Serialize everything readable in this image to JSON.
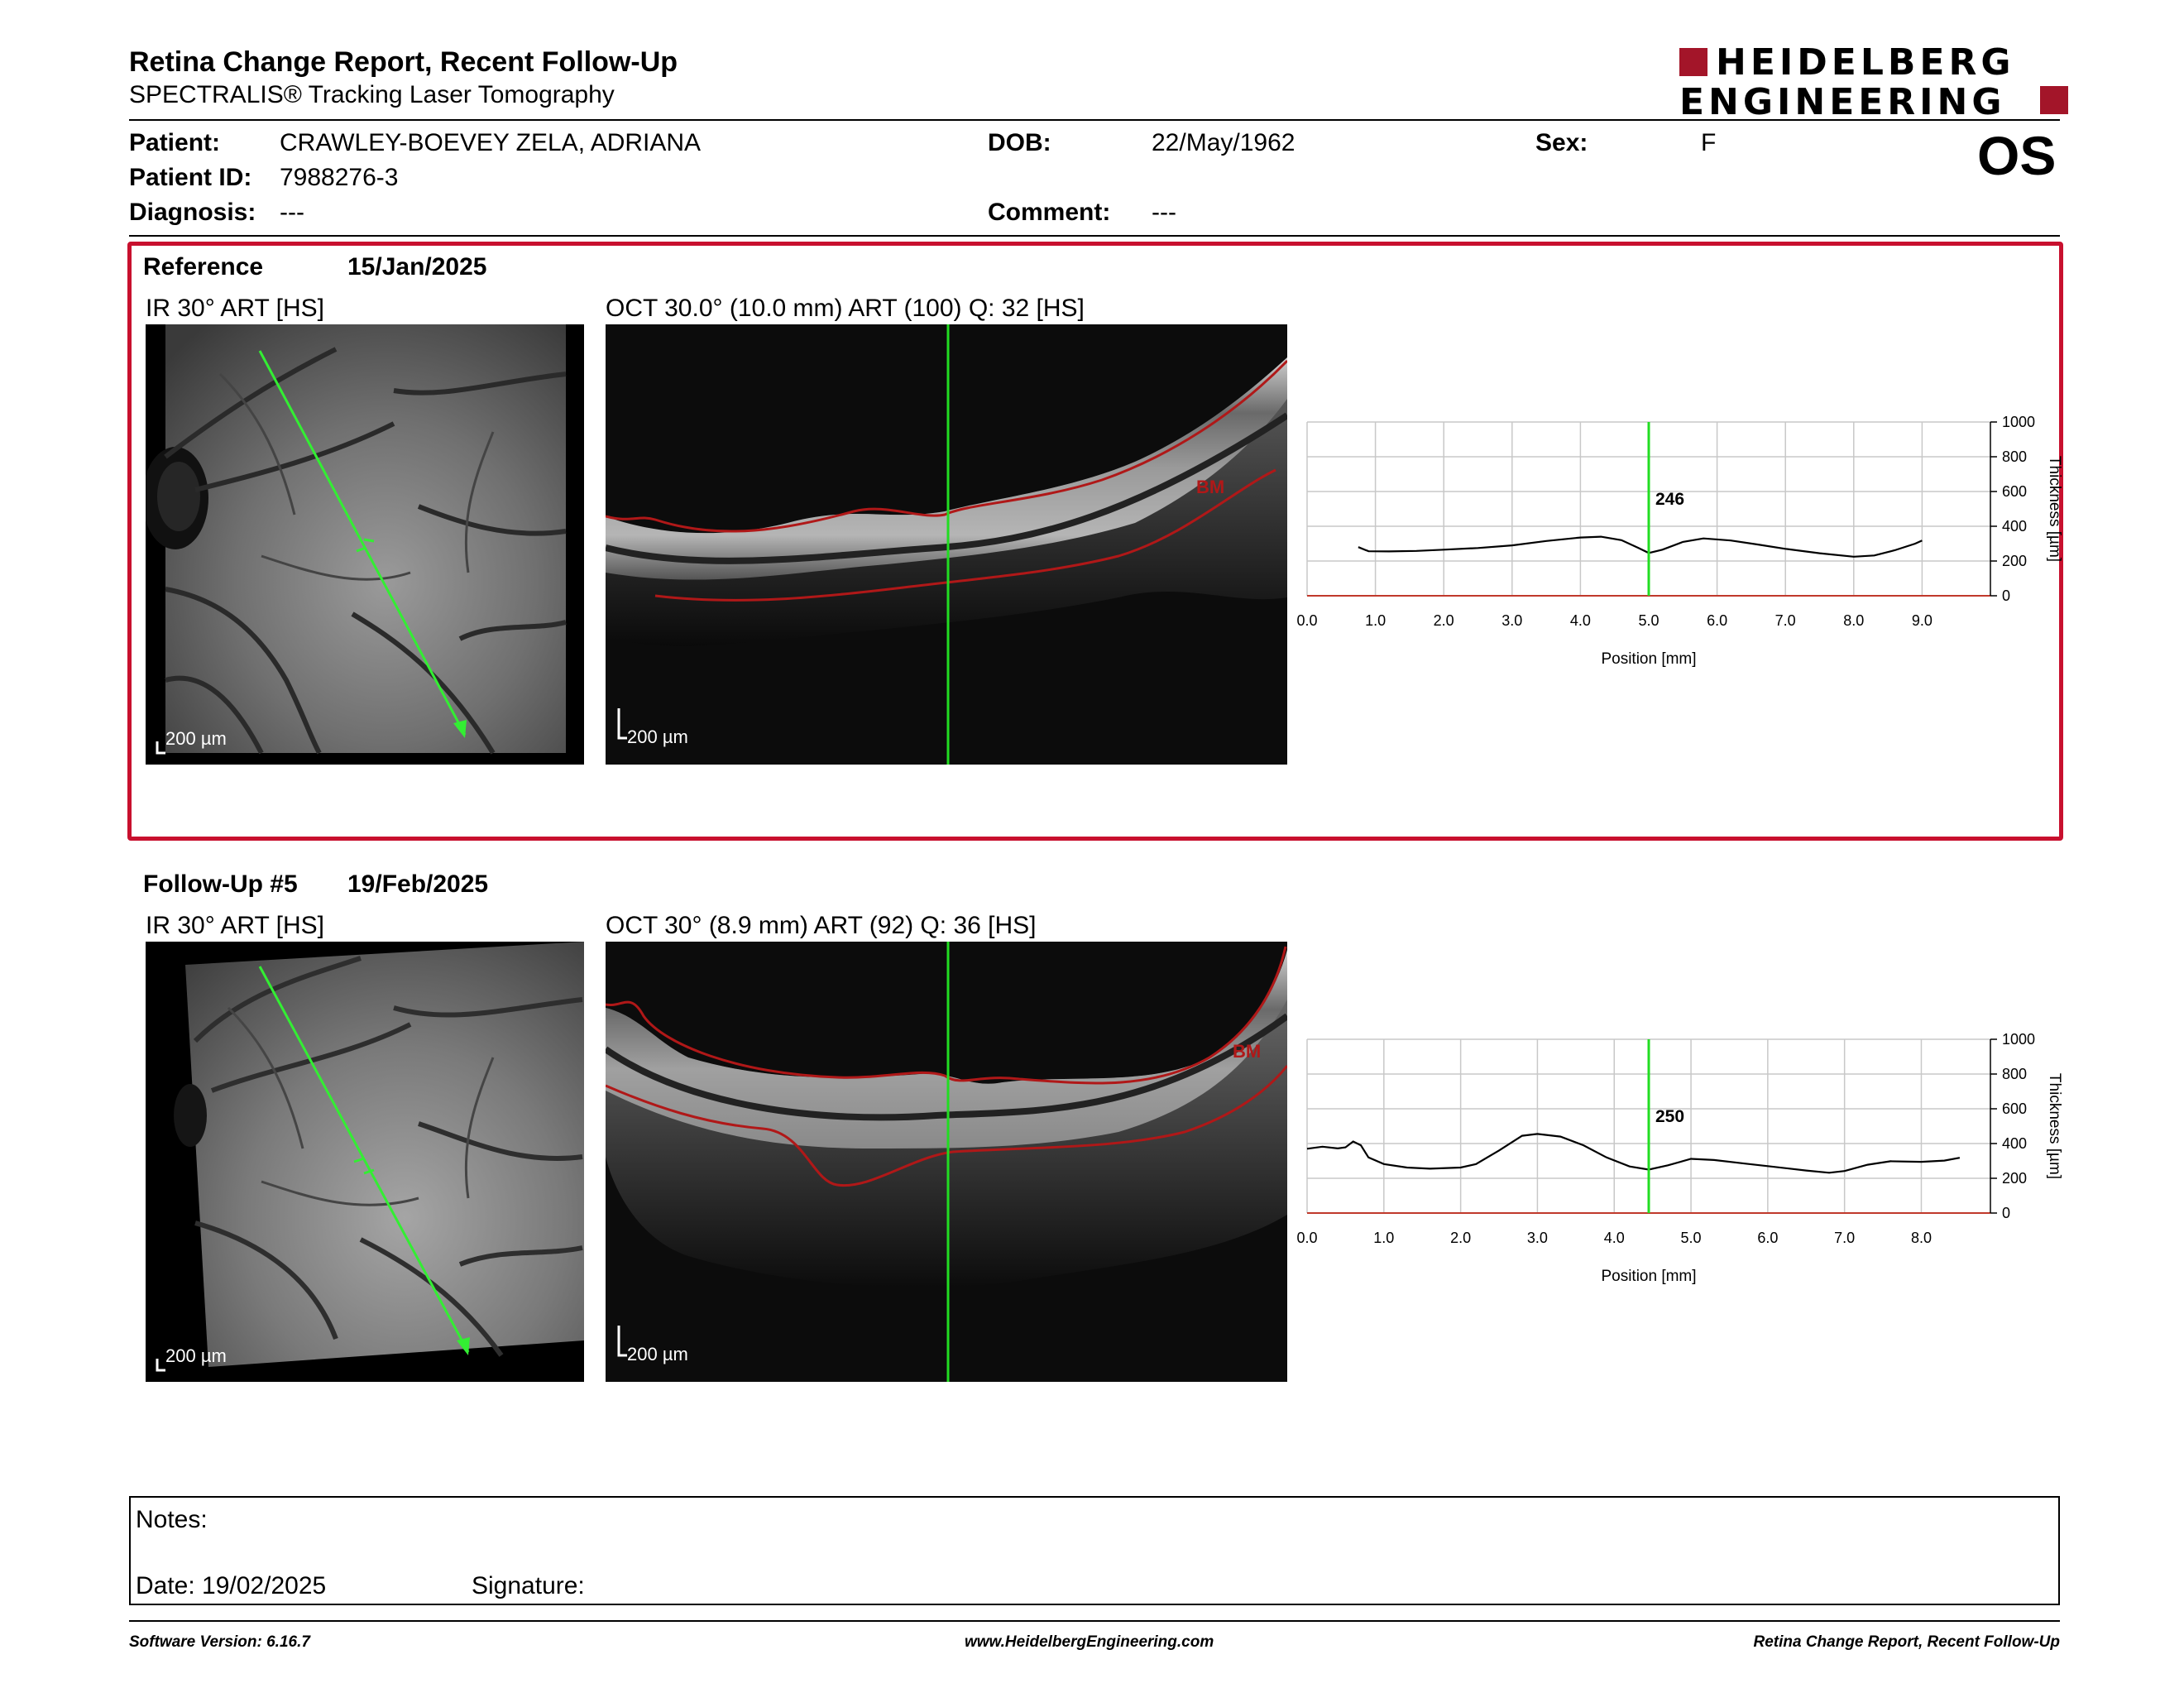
{
  "header": {
    "title": "Retina Change Report, Recent Follow-Up",
    "subtitle": "SPECTRALIS® Tracking Laser Tomography",
    "logo_line1": "HEIDELBERG",
    "logo_line2": "ENGINEERING",
    "eye": "OS"
  },
  "patient": {
    "patient_label": "Patient:",
    "patient_value": "CRAWLEY-BOEVEY ZELA, ADRIANA",
    "id_label": "Patient ID:",
    "id_value": "7988276-3",
    "diagnosis_label": "Diagnosis:",
    "diagnosis_value": "---",
    "dob_label": "DOB:",
    "dob_value": "22/May/1962",
    "comment_label": "Comment:",
    "comment_value": "---",
    "sex_label": "Sex:",
    "sex_value": "F"
  },
  "reference": {
    "label": "Reference",
    "date": "15/Jan/2025",
    "ir_label": "IR 30° ART [HS]",
    "oct_label": "OCT 30.0° (10.0 mm) ART (100) Q: 32 [HS]",
    "scale_ir": "200 µm",
    "scale_oct": "200 µm",
    "bm_label": "BM"
  },
  "followup": {
    "label": "Follow-Up #5",
    "date": "19/Feb/2025",
    "ir_label": "IR 30° ART [HS]",
    "oct_label": "OCT 30° (8.9 mm) ART (92) Q: 36 [HS]",
    "scale_ir": "200 µm",
    "scale_oct": "200 µm",
    "bm_label": "BM"
  },
  "chart_data": [
    {
      "type": "line",
      "xlabel": "Position [mm]",
      "ylabel": "Thickness [µm]",
      "xlim": [
        0,
        10
      ],
      "ylim": [
        0,
        1000
      ],
      "x_ticks": [
        "0.0",
        "1.0",
        "2.0",
        "3.0",
        "4.0",
        "5.0",
        "6.0",
        "7.0",
        "8.0",
        "9.0"
      ],
      "y_ticks": [
        "0",
        "200",
        "400",
        "600",
        "800",
        "1000"
      ],
      "cursor_x": 5.0,
      "cursor_label": "246",
      "grid": true,
      "series": [
        {
          "x": [
            0.75,
            0.9,
            1.2,
            1.6,
            2.0,
            2.5,
            3.0,
            3.5,
            4.0,
            4.3,
            4.6,
            4.85,
            5.0,
            5.2,
            5.5,
            5.8,
            6.2,
            6.6,
            7.0,
            7.5,
            8.0,
            8.3,
            8.6,
            8.9,
            9.0
          ],
          "y": [
            280,
            256,
            255,
            258,
            265,
            275,
            290,
            315,
            335,
            340,
            320,
            275,
            246,
            265,
            310,
            330,
            318,
            295,
            270,
            245,
            225,
            232,
            262,
            300,
            318
          ]
        }
      ]
    },
    {
      "type": "line",
      "xlabel": "Position [mm]",
      "ylabel": "Thickness [µm]",
      "xlim": [
        0,
        8.9
      ],
      "ylim": [
        0,
        1000
      ],
      "x_ticks": [
        "0.0",
        "1.0",
        "2.0",
        "3.0",
        "4.0",
        "5.0",
        "6.0",
        "7.0",
        "8.0"
      ],
      "y_ticks": [
        "0",
        "200",
        "400",
        "600",
        "800",
        "1000"
      ],
      "cursor_x": 4.45,
      "cursor_label": "250",
      "grid": true,
      "series": [
        {
          "x": [
            0.0,
            0.2,
            0.4,
            0.5,
            0.6,
            0.7,
            0.8,
            1.0,
            1.3,
            1.6,
            2.0,
            2.2,
            2.5,
            2.8,
            3.0,
            3.3,
            3.6,
            3.9,
            4.2,
            4.45,
            4.7,
            5.0,
            5.3,
            5.7,
            6.0,
            6.5,
            6.8,
            7.0,
            7.3,
            7.6,
            8.0,
            8.3,
            8.5
          ],
          "y": [
            370,
            382,
            372,
            378,
            412,
            390,
            320,
            282,
            262,
            255,
            262,
            282,
            360,
            445,
            455,
            440,
            390,
            320,
            268,
            250,
            275,
            312,
            305,
            285,
            270,
            245,
            232,
            242,
            278,
            298,
            295,
            302,
            318
          ]
        }
      ]
    }
  ],
  "notes": {
    "notes_label": "Notes:",
    "date_label": "Date: 19/02/2025",
    "signature_label": "Signature:"
  },
  "footer": {
    "left": "Software Version: 6.16.7",
    "center": "www.HeidelbergEngineering.com",
    "right": "Retina Change Report, Recent Follow-Up"
  },
  "colors": {
    "brand": "#a31529",
    "box_border": "#c8102e",
    "cursor": "#22dd22",
    "layer": "#b01818"
  }
}
